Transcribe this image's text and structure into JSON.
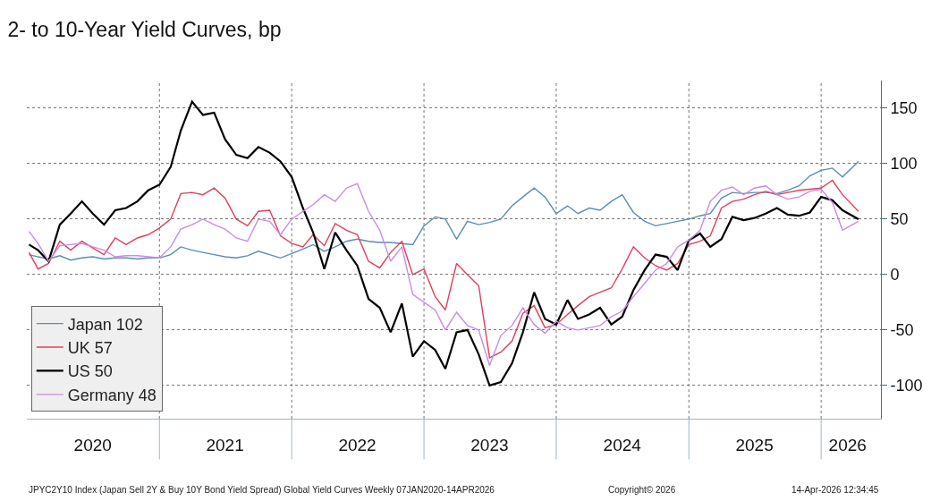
{
  "chart_data": {
    "type": "line",
    "title": "2- to 10-Year Yield Curves, bp",
    "x": [
      "2020-01-07",
      "2020-02-01",
      "2020-03-01",
      "2020-04-01",
      "2020-05-01",
      "2020-06-01",
      "2020-07-01",
      "2020-08-01",
      "2020-09-01",
      "2020-10-01",
      "2020-11-01",
      "2020-12-01",
      "2021-01-01",
      "2021-02-01",
      "2021-03-01",
      "2021-04-01",
      "2021-05-01",
      "2021-06-01",
      "2021-07-01",
      "2021-08-01",
      "2021-09-01",
      "2021-10-01",
      "2021-11-01",
      "2021-12-01",
      "2022-01-01",
      "2022-02-01",
      "2022-03-01",
      "2022-04-01",
      "2022-05-01",
      "2022-06-01",
      "2022-07-01",
      "2022-08-01",
      "2022-09-01",
      "2022-10-01",
      "2022-11-01",
      "2022-12-01",
      "2023-01-01",
      "2023-02-01",
      "2023-03-01",
      "2023-04-01",
      "2023-05-01",
      "2023-06-01",
      "2023-07-01",
      "2023-08-01",
      "2023-09-01",
      "2023-10-01",
      "2023-11-01",
      "2023-12-01",
      "2024-01-01",
      "2024-02-01",
      "2024-03-01",
      "2024-04-01",
      "2024-05-01",
      "2024-06-01",
      "2024-07-01",
      "2024-08-01",
      "2024-09-01",
      "2024-10-01",
      "2024-11-01",
      "2024-12-01",
      "2025-01-01",
      "2025-02-01",
      "2025-03-01",
      "2025-04-01",
      "2025-05-01",
      "2025-06-01",
      "2025-07-01",
      "2025-08-01",
      "2025-09-01",
      "2025-10-01",
      "2025-11-01",
      "2025-12-01",
      "2026-01-01",
      "2026-02-01",
      "2026-03-01",
      "2026-04-14"
    ],
    "series": [
      {
        "name": "Japan 102",
        "color": "#5a8cb3",
        "values": [
          18,
          16,
          14,
          17,
          13,
          15,
          16,
          14,
          15,
          15,
          14,
          15,
          15,
          18,
          25,
          22,
          20,
          18,
          16,
          15,
          17,
          21,
          18,
          15,
          19,
          23,
          27,
          21,
          25,
          30,
          32,
          30,
          29,
          29,
          28,
          27,
          44,
          52,
          50,
          32,
          48,
          45,
          47,
          50,
          62,
          70,
          78,
          70,
          55,
          62,
          55,
          60,
          58,
          66,
          72,
          56,
          48,
          44,
          46,
          48,
          50,
          53,
          55,
          69,
          74,
          73,
          74,
          74,
          73,
          76,
          80,
          89,
          94,
          96,
          88,
          102
        ]
      },
      {
        "name": "UK 57",
        "color": "#e0405a",
        "values": [
          20,
          5,
          10,
          30,
          22,
          30,
          24,
          18,
          33,
          27,
          33,
          36,
          42,
          50,
          73,
          74,
          72,
          78,
          69,
          50,
          44,
          57,
          58,
          35,
          28,
          25,
          36,
          26,
          46,
          40,
          36,
          12,
          6,
          20,
          30,
          0,
          5,
          -20,
          -32,
          10,
          0,
          -10,
          -75,
          -70,
          -60,
          -35,
          -28,
          -48,
          -45,
          -36,
          -28,
          -20,
          -16,
          -12,
          5,
          25,
          15,
          8,
          4,
          10,
          27,
          30,
          35,
          60,
          66,
          68,
          72,
          75,
          72,
          74,
          76,
          77,
          78,
          85,
          72,
          57
        ]
      },
      {
        "name": "US 50",
        "color": "#000000",
        "values": [
          27,
          22,
          12,
          45,
          55,
          66,
          55,
          45,
          58,
          60,
          66,
          76,
          81,
          97,
          130,
          156,
          144,
          146,
          122,
          108,
          105,
          115,
          110,
          102,
          88,
          60,
          38,
          5,
          38,
          22,
          8,
          -22,
          -30,
          -52,
          -26,
          -74,
          -60,
          -68,
          -85,
          -52,
          -50,
          -72,
          -100,
          -97,
          -80,
          -52,
          -16,
          -40,
          -45,
          -23,
          -40,
          -36,
          -30,
          -45,
          -38,
          -14,
          4,
          18,
          16,
          4,
          31,
          37,
          25,
          32,
          52,
          49,
          51,
          55,
          60,
          54,
          53,
          56,
          70,
          67,
          58,
          50
        ]
      },
      {
        "name": "Germany 48",
        "color": "#c98be6",
        "values": [
          39,
          28,
          12,
          26,
          27,
          28,
          25,
          22,
          16,
          17,
          17,
          16,
          15,
          25,
          41,
          45,
          50,
          45,
          41,
          33,
          30,
          50,
          48,
          36,
          50,
          57,
          63,
          72,
          66,
          78,
          82,
          57,
          40,
          12,
          25,
          -18,
          -25,
          -32,
          -50,
          -34,
          -46,
          -50,
          -82,
          -55,
          -46,
          -30,
          -45,
          -53,
          -42,
          -48,
          -50,
          -48,
          -46,
          -38,
          -33,
          -20,
          -8,
          4,
          10,
          25,
          31,
          40,
          66,
          76,
          79,
          72,
          78,
          80,
          72,
          68,
          70,
          75,
          77,
          65,
          40,
          48
        ]
      }
    ],
    "xlim": [
      "2020-01-01",
      "2026-06-15"
    ],
    "xticks": [
      {
        "value": "2020-07-01",
        "label": "2020"
      },
      {
        "value": "2021-01-01",
        "label": null
      },
      {
        "value": "2021-07-01",
        "label": "2021"
      },
      {
        "value": "2022-01-01",
        "label": null
      },
      {
        "value": "2022-07-01",
        "label": "2022"
      },
      {
        "value": "2023-01-01",
        "label": null
      },
      {
        "value": "2023-07-01",
        "label": "2023"
      },
      {
        "value": "2024-01-01",
        "label": null
      },
      {
        "value": "2024-07-01",
        "label": "2024"
      },
      {
        "value": "2025-01-01",
        "label": null
      },
      {
        "value": "2025-07-01",
        "label": "2025"
      },
      {
        "value": "2026-01-01",
        "label": null
      },
      {
        "value": "2026-03-15",
        "label": "2026"
      }
    ],
    "ylim": [
      -130,
      175
    ],
    "yticks": [
      -100,
      -50,
      0,
      50,
      100,
      150
    ],
    "grid": true,
    "legend": "bottom left",
    "annotations": [
      "JPYC2Y10 Index (Japan Sell 2Y & Buy 10Y Bond Yield Spread) Global Yield Curves Weekly 07JAN2020-14APR2026",
      "Copyright© 2026",
      "14-Apr-2026 12:34:45"
    ]
  }
}
